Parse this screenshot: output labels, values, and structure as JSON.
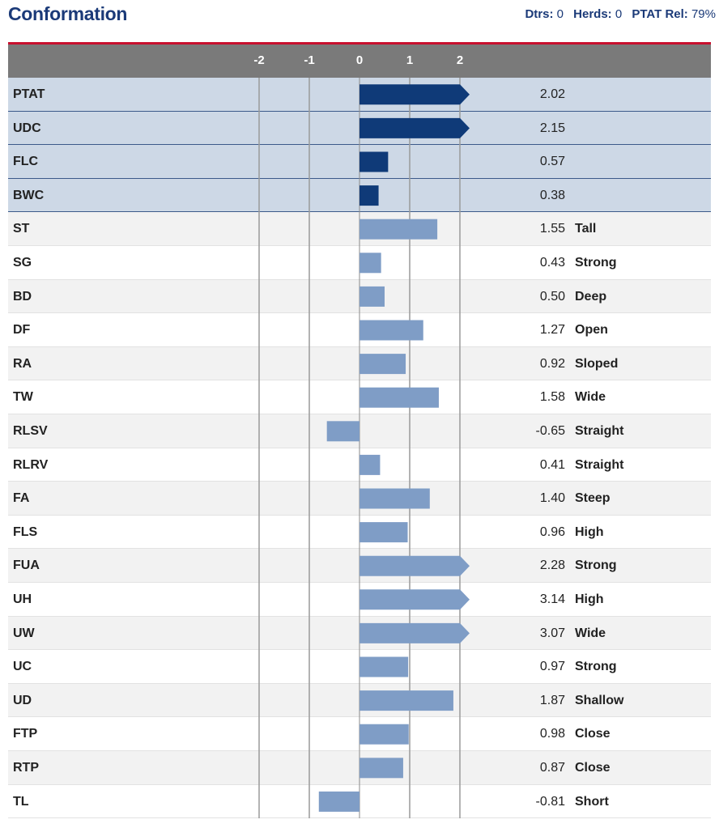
{
  "header": {
    "title": "Conformation",
    "dtrs_label": "Dtrs:",
    "dtrs_value": "0",
    "herds_label": "Herds:",
    "herds_value": "0",
    "ptat_rel_label": "PTAT Rel:",
    "ptat_rel_value": "79%"
  },
  "colors": {
    "title": "#1b3a78",
    "accent_line": "#c8102e",
    "axis_header": "#7a7a7a",
    "primary_bar": "#0f3a78",
    "secondary_bar": "#7f9dc6",
    "primary_row_bg": "#cdd8e6"
  },
  "chart_data": {
    "type": "bar",
    "orientation": "horizontal",
    "ticks": [
      "-2",
      "-1",
      "0",
      "1",
      "2"
    ],
    "tick_values": [
      -2,
      -1,
      0,
      1,
      2
    ],
    "xlim": [
      -2,
      2
    ],
    "gridlines": [
      -2,
      -1,
      1,
      2
    ],
    "categories": [
      "PTAT",
      "UDC",
      "FLC",
      "BWC",
      "ST",
      "SG",
      "BD",
      "DF",
      "RA",
      "TW",
      "RLSV",
      "RLRV",
      "FA",
      "FLS",
      "FUA",
      "UH",
      "UW",
      "UC",
      "UD",
      "FTP",
      "RTP",
      "TL"
    ],
    "values": [
      2.02,
      2.15,
      0.57,
      0.38,
      1.55,
      0.43,
      0.5,
      1.27,
      0.92,
      1.58,
      -0.65,
      0.41,
      1.4,
      0.96,
      2.28,
      3.14,
      3.07,
      0.97,
      1.87,
      0.98,
      0.87,
      -0.81
    ],
    "value_labels": [
      "2.02",
      "2.15",
      "0.57",
      "0.38",
      "1.55",
      "0.43",
      "0.50",
      "1.27",
      "0.92",
      "1.58",
      "-0.65",
      "0.41",
      "1.40",
      "0.96",
      "2.28",
      "3.14",
      "3.07",
      "0.97",
      "1.87",
      "0.98",
      "0.87",
      "-0.81"
    ],
    "descriptors": [
      "",
      "",
      "",
      "",
      "Tall",
      "Strong",
      "Deep",
      "Open",
      "Sloped",
      "Wide",
      "Straight",
      "Straight",
      "Steep",
      "High",
      "Strong",
      "High",
      "Wide",
      "Strong",
      "Shallow",
      "Close",
      "Close",
      "Short"
    ],
    "primary_count": 4
  }
}
